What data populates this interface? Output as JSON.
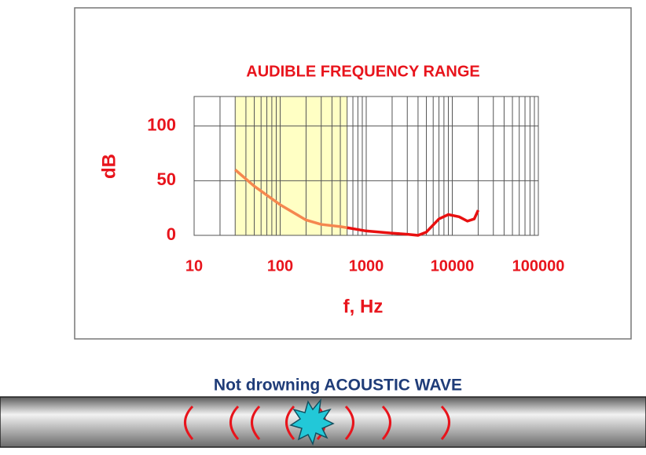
{
  "chart_data": {
    "type": "line",
    "title": "AUDIBLE FREQUENCY RANGE",
    "x_label": "f, Hz",
    "y_label": "dB",
    "x_log": true,
    "grid": true,
    "xlim": [
      10,
      100000
    ],
    "xticks": [
      10,
      100,
      1000,
      10000,
      100000
    ],
    "x_minor_ticks": [
      20,
      30,
      40,
      50,
      60,
      70,
      80,
      90,
      200,
      300,
      400,
      500,
      600,
      700,
      800,
      900,
      2000,
      3000,
      4000,
      5000,
      6000,
      7000,
      8000,
      9000,
      20000,
      30000,
      40000,
      50000,
      60000,
      70000,
      80000,
      90000
    ],
    "ylim": [
      0,
      127
    ],
    "yticks": [
      0,
      50,
      100
    ],
    "highlight": {
      "xlim": [
        30,
        600
      ],
      "color": "#ffffc4"
    },
    "series": [
      {
        "color": "#f5874f",
        "x": [
          30,
          50,
          100,
          200,
          300,
          500,
          600
        ],
        "values": [
          60,
          45,
          28,
          14,
          10,
          8,
          7
        ]
      },
      {
        "color": "#e81010",
        "x": [
          600,
          1000,
          2000,
          3000,
          4000,
          5000,
          7000,
          9000,
          12000,
          15000,
          18000,
          20000
        ],
        "values": [
          7,
          4,
          2,
          1,
          0,
          3,
          15,
          19,
          17,
          13,
          15,
          23
        ]
      }
    ]
  },
  "diagram": {
    "caption": "Not drowning ACOUSTIC WAVE"
  }
}
